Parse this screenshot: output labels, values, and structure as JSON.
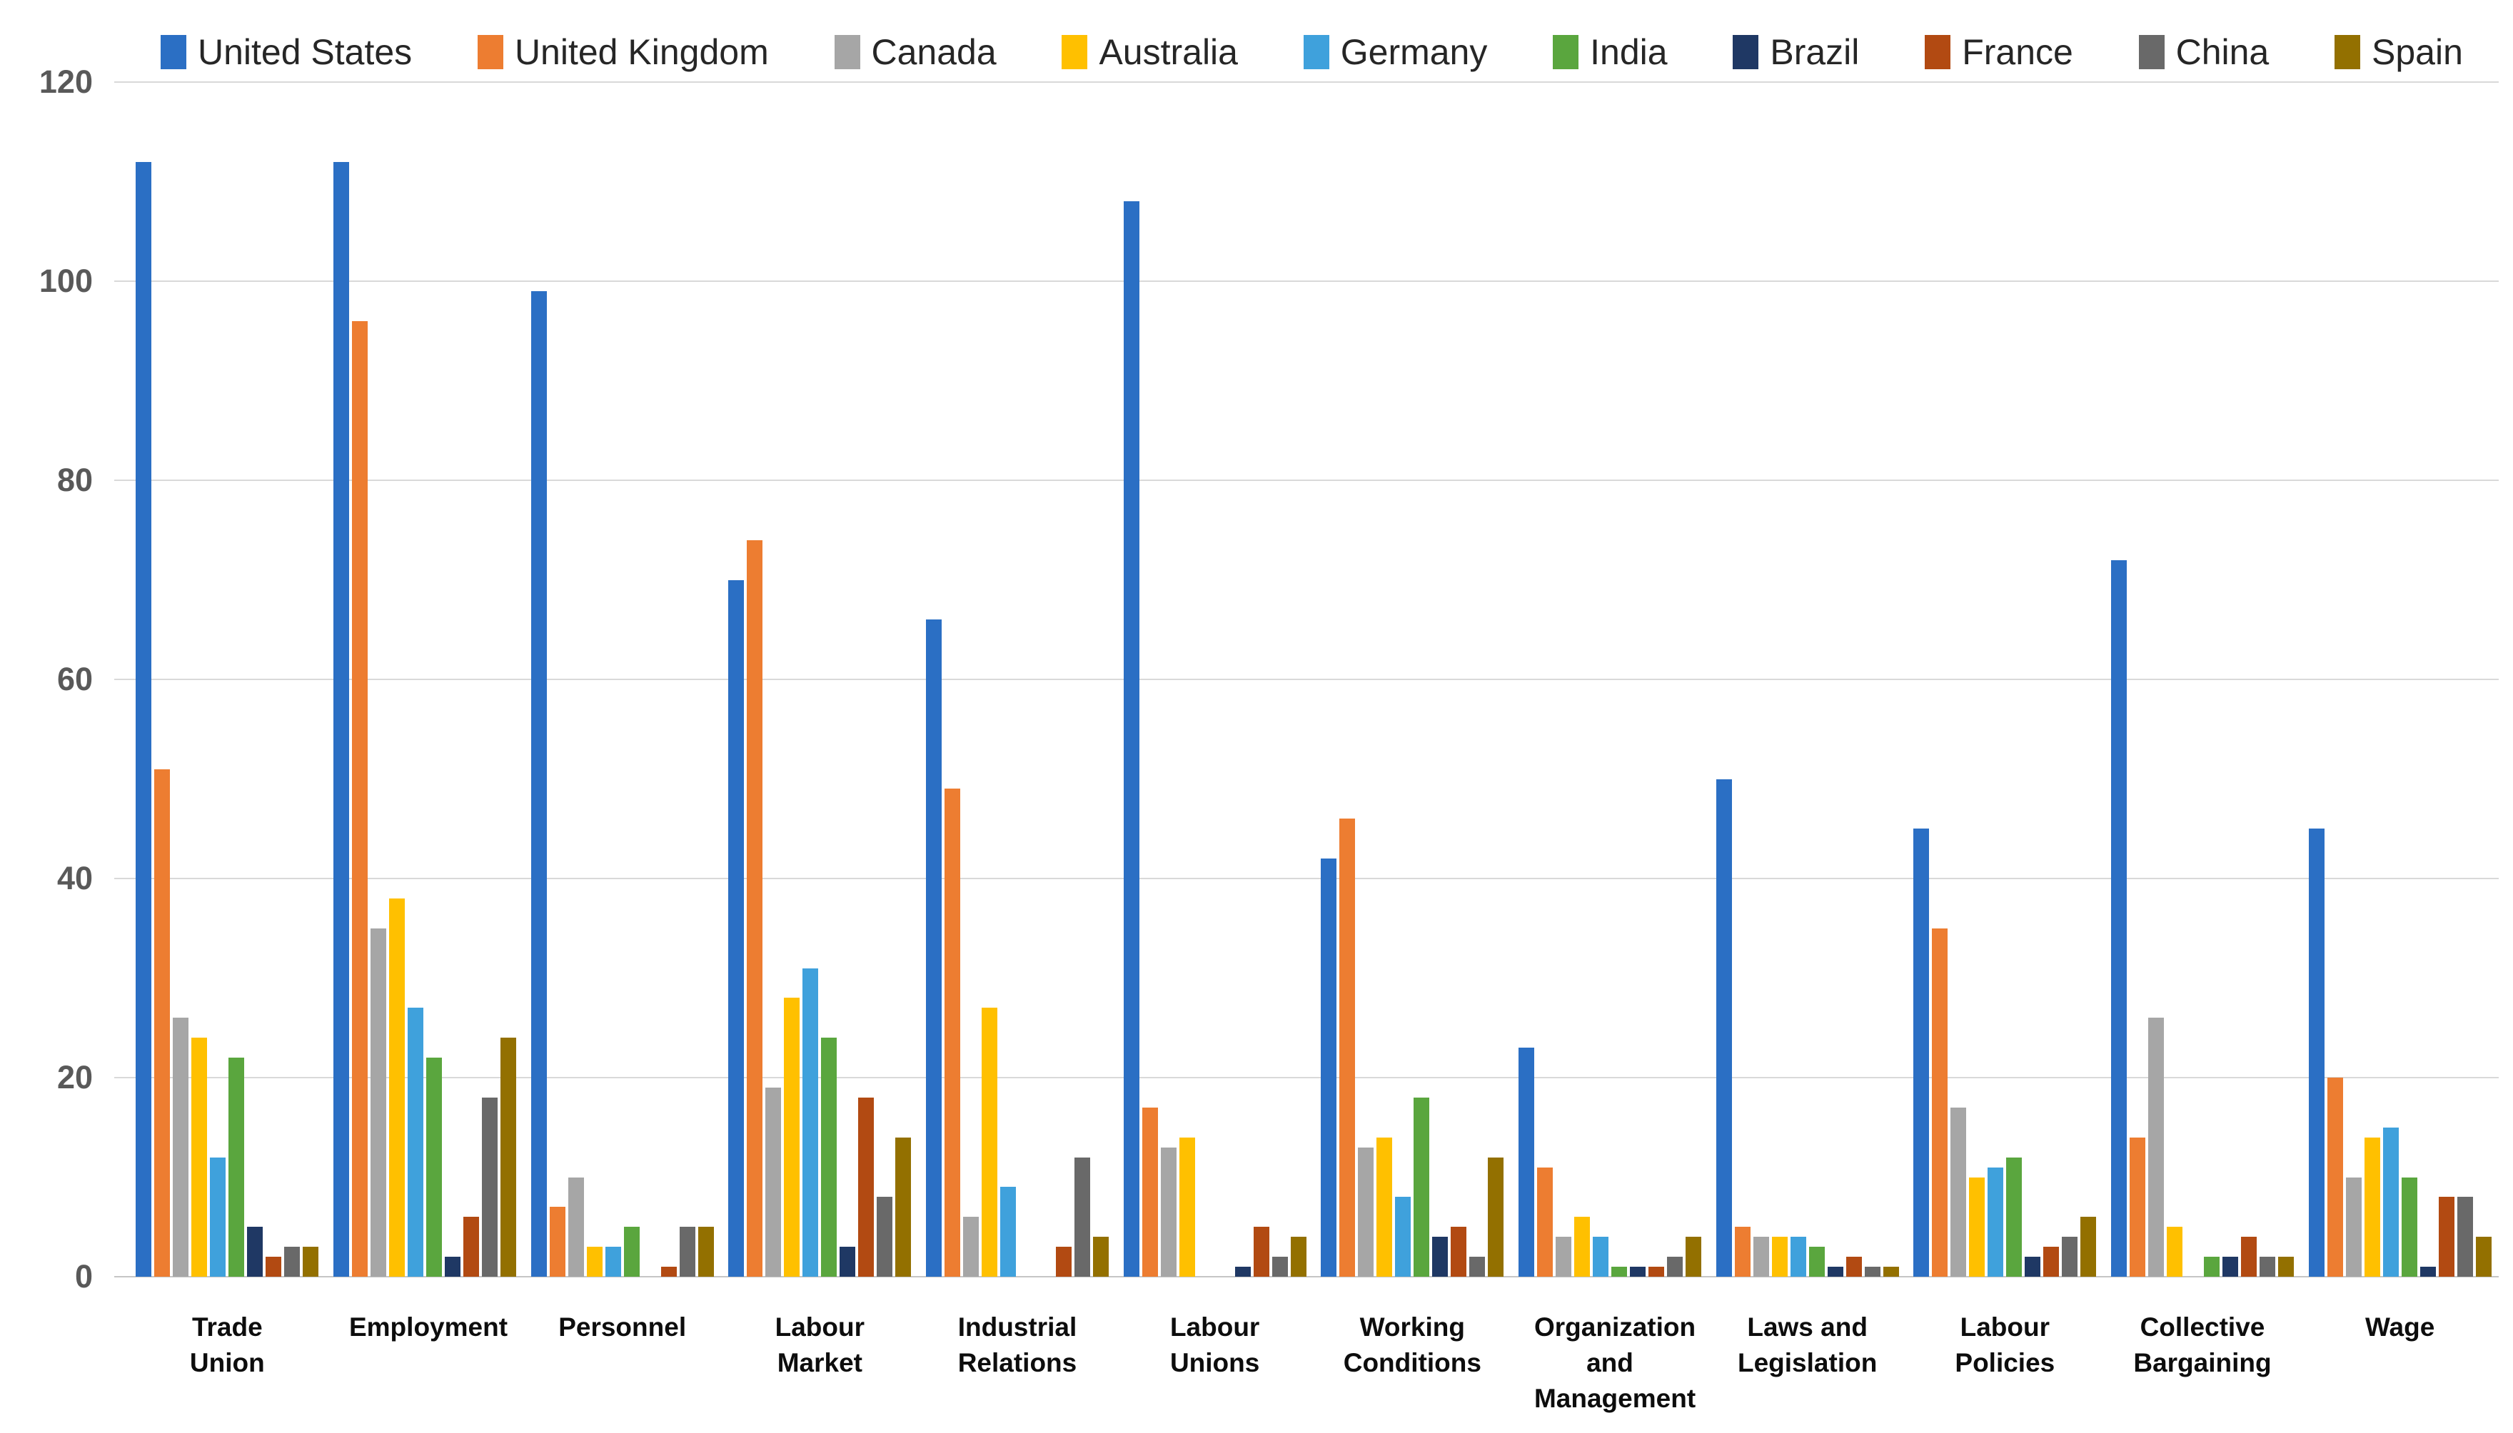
{
  "chart_data": {
    "type": "bar",
    "title": "",
    "xlabel": "",
    "ylabel": "",
    "legend_position": "top",
    "grid": true,
    "ylim": [
      0,
      120
    ],
    "yticks": [
      0,
      20,
      40,
      60,
      80,
      100,
      120
    ],
    "categories": [
      "Trade Union",
      "Employment",
      "Personnel",
      "Labour Market",
      "Industrial Relations",
      "Labour Unions",
      "Working Conditions",
      "Organization and Management",
      "Laws and Legislation",
      "Labour Policies",
      "Collective Bargaining",
      "Wage"
    ],
    "series": [
      {
        "name": "United States",
        "color": "#2B6FC4",
        "values": [
          112,
          112,
          99,
          70,
          66,
          108,
          42,
          23,
          50,
          45,
          72,
          45
        ]
      },
      {
        "name": "United Kingdom",
        "color": "#ED7D31",
        "values": [
          51,
          96,
          7,
          74,
          49,
          17,
          46,
          11,
          5,
          35,
          14,
          20
        ]
      },
      {
        "name": "Canada",
        "color": "#A6A6A6",
        "values": [
          26,
          35,
          10,
          19,
          6,
          13,
          13,
          4,
          4,
          17,
          26,
          10
        ]
      },
      {
        "name": "Australia",
        "color": "#FFC000",
        "values": [
          24,
          38,
          3,
          28,
          27,
          14,
          14,
          6,
          4,
          10,
          5,
          14
        ]
      },
      {
        "name": "Germany",
        "color": "#3FA1DC",
        "values": [
          12,
          27,
          3,
          31,
          9,
          0,
          8,
          4,
          4,
          11,
          0,
          15
        ]
      },
      {
        "name": "India",
        "color": "#5AA63E",
        "values": [
          22,
          22,
          5,
          24,
          0,
          0,
          18,
          1,
          3,
          12,
          2,
          10
        ]
      },
      {
        "name": "Brazil",
        "color": "#1F3864",
        "values": [
          5,
          2,
          0,
          3,
          0,
          1,
          4,
          1,
          1,
          2,
          2,
          1
        ]
      },
      {
        "name": "France",
        "color": "#B24A12",
        "values": [
          2,
          6,
          1,
          18,
          3,
          5,
          5,
          1,
          2,
          3,
          4,
          8
        ]
      },
      {
        "name": "China",
        "color": "#696969",
        "values": [
          3,
          18,
          5,
          8,
          12,
          2,
          2,
          2,
          1,
          4,
          2,
          8
        ]
      },
      {
        "name": "Spain",
        "color": "#937000",
        "values": [
          3,
          24,
          5,
          14,
          4,
          4,
          12,
          4,
          1,
          6,
          2,
          4
        ]
      }
    ]
  },
  "style": {
    "background": "#ffffff",
    "gridline_color": "#d9d9d9",
    "axis_line_color": "#c6c6c6",
    "tick_text_color": "#595959",
    "category_text_color": "#0d0d0d",
    "legend_text_color": "#262626"
  }
}
